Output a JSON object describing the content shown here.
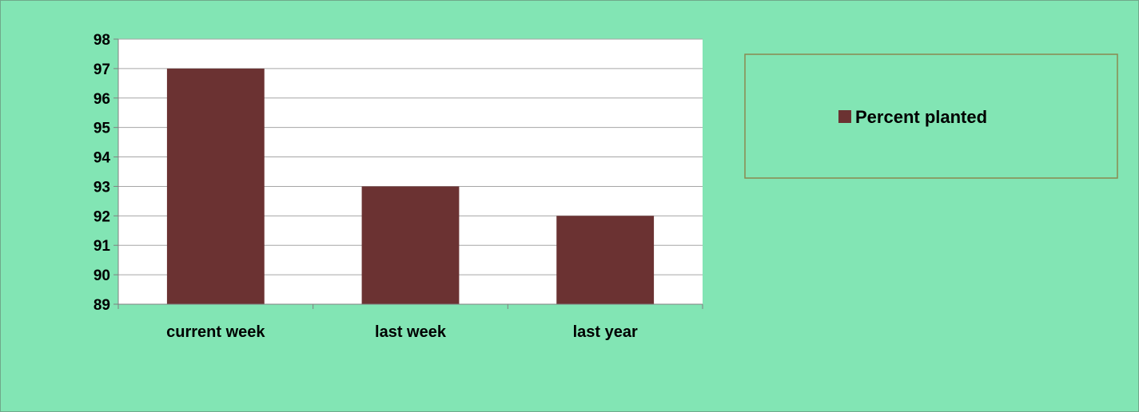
{
  "chart_data": {
    "type": "bar",
    "categories": [
      "current week",
      "last week",
      "last year"
    ],
    "series": [
      {
        "name": "Percent planted",
        "values": [
          97,
          93,
          92
        ]
      }
    ],
    "title": "",
    "xlabel": "",
    "ylabel": "",
    "ylim": [
      89,
      98
    ],
    "yticks": [
      89,
      90,
      91,
      92,
      93,
      94,
      95,
      96,
      97,
      98
    ],
    "grid": true,
    "legend_position": "right-top"
  },
  "colors": {
    "background": "#82e5b4",
    "plot_background": "#ffffff",
    "bar": "#6b3232",
    "gridline": "#a6a6a6",
    "axis": "#808080",
    "legend_border": "#8a8a50"
  }
}
